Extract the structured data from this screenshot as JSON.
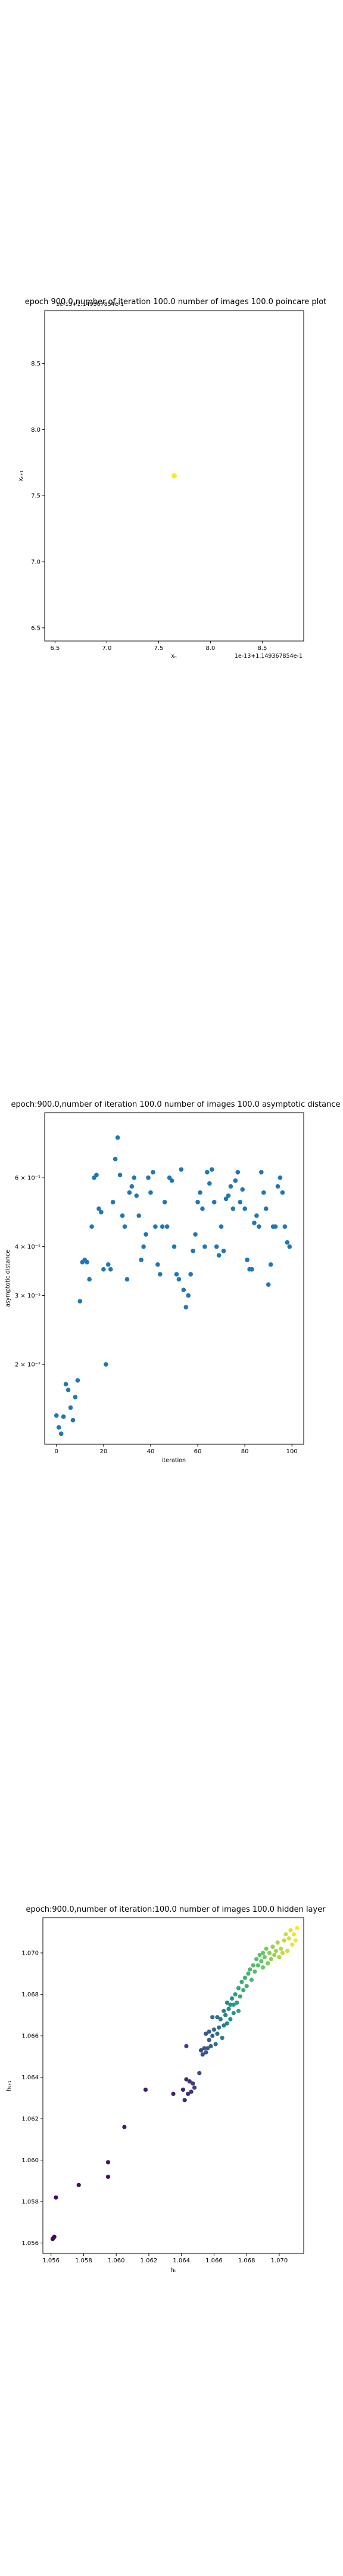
{
  "chart_data": [
    {
      "type": "scatter",
      "title": "epoch 900.0,number of iteration 100.0 number of images 100.0 poincare plot",
      "overlay_text": "1e-13+1.149367854e-1",
      "xlabel": "xₙ",
      "ylabel": "xₙ₊₁",
      "x_ticks": [
        "6.5",
        "7.0",
        "7.5",
        "8.0",
        "8.5"
      ],
      "y_ticks": [
        "6.5",
        "7.0",
        "7.5",
        "8.0",
        "8.5"
      ],
      "offset_label": "1e-13+1.149367854e-1",
      "xlim": [
        6.4,
        8.9
      ],
      "ylim": [
        6.4,
        8.9
      ],
      "grid": false,
      "points": [
        {
          "x": 7.65,
          "y": 7.65
        }
      ],
      "color": "#fde725"
    },
    {
      "type": "scatter",
      "title": "epoch:900.0,number of iteration 100.0  number of images 100.0 asymptotic distance",
      "xlabel": "iteration",
      "ylabel": "asymptotic distance",
      "x_ticks": [
        "0",
        "20",
        "40",
        "60",
        "80",
        "100"
      ],
      "y_ticks": [
        "2 × 10⁻¹",
        "3 × 10⁻¹",
        "4 × 10⁻¹",
        "6 × 10⁻¹"
      ],
      "y_tick_values": [
        0.2,
        0.3,
        0.4,
        0.6
      ],
      "y_scale": "log",
      "xlim": [
        -5,
        105
      ],
      "ylim": [
        0.125,
        0.88
      ],
      "grid": false,
      "color": "#1f77b4",
      "x": [
        0,
        1,
        2,
        3,
        4,
        5,
        6,
        7,
        8,
        9,
        10,
        11,
        12,
        13,
        14,
        15,
        16,
        17,
        18,
        19,
        20,
        21,
        22,
        23,
        24,
        25,
        26,
        27,
        28,
        29,
        30,
        31,
        32,
        33,
        34,
        35,
        36,
        37,
        38,
        39,
        40,
        41,
        42,
        43,
        44,
        45,
        46,
        47,
        48,
        49,
        50,
        51,
        52,
        53,
        54,
        55,
        56,
        57,
        58,
        59,
        60,
        61,
        62,
        63,
        64,
        65,
        66,
        67,
        68,
        69,
        70,
        71,
        72,
        73,
        74,
        75,
        76,
        77,
        78,
        79,
        80,
        81,
        82,
        83,
        84,
        85,
        86,
        87,
        88,
        89,
        90,
        91,
        92,
        93,
        94,
        95,
        96,
        97,
        98,
        99
      ],
      "values": [
        0.148,
        0.138,
        0.133,
        0.147,
        0.178,
        0.172,
        0.155,
        0.144,
        0.165,
        0.182,
        0.29,
        0.365,
        0.37,
        0.365,
        0.33,
        0.45,
        0.6,
        0.61,
        0.5,
        0.49,
        0.35,
        0.2,
        0.36,
        0.35,
        0.52,
        0.67,
        0.76,
        0.61,
        0.48,
        0.45,
        0.33,
        0.55,
        0.57,
        0.6,
        0.54,
        0.48,
        0.37,
        0.4,
        0.43,
        0.6,
        0.55,
        0.62,
        0.45,
        0.36,
        0.34,
        0.45,
        0.52,
        0.45,
        0.6,
        0.59,
        0.4,
        0.34,
        0.33,
        0.63,
        0.31,
        0.28,
        0.3,
        0.34,
        0.39,
        0.43,
        0.52,
        0.55,
        0.5,
        0.4,
        0.62,
        0.58,
        0.63,
        0.52,
        0.4,
        0.38,
        0.45,
        0.39,
        0.53,
        0.54,
        0.57,
        0.5,
        0.59,
        0.62,
        0.52,
        0.56,
        0.5,
        0.37,
        0.35,
        0.35,
        0.46,
        0.48,
        0.45,
        0.62,
        0.55,
        0.5,
        0.32,
        0.36,
        0.45,
        0.45,
        0.57,
        0.6,
        0.55,
        0.45,
        0.41,
        0.4
      ]
    },
    {
      "type": "scatter",
      "title": "epoch:900.0,number of iteration:100.0  number of images 100.0 hidden layer",
      "xlabel": "hₜ",
      "ylabel": "hₜ₊₁",
      "x_ticks": [
        "1.056",
        "1.058",
        "1.060",
        "1.062",
        "1.064",
        "1.066",
        "1.068",
        "1.070"
      ],
      "y_ticks": [
        "1.056",
        "1.058",
        "1.060",
        "1.062",
        "1.064",
        "1.066",
        "1.068",
        "1.070"
      ],
      "xlim": [
        1.0555,
        1.0715
      ],
      "ylim": [
        1.0555,
        1.0717
      ],
      "grid": false,
      "colormap": "viridis",
      "points": [
        {
          "x": 1.0561,
          "y": 1.0562
        },
        {
          "x": 1.0562,
          "y": 1.0563
        },
        {
          "x": 1.05615,
          "y": 1.05625
        },
        {
          "x": 1.0563,
          "y": 1.0582
        },
        {
          "x": 1.0577,
          "y": 1.0588
        },
        {
          "x": 1.0595,
          "y": 1.0592
        },
        {
          "x": 1.0595,
          "y": 1.0599
        },
        {
          "x": 1.0605,
          "y": 1.0616
        },
        {
          "x": 1.0618,
          "y": 1.0634
        },
        {
          "x": 1.0635,
          "y": 1.0632
        },
        {
          "x": 1.0641,
          "y": 1.0634
        },
        {
          "x": 1.0642,
          "y": 1.0629
        },
        {
          "x": 1.0643,
          "y": 1.0639
        },
        {
          "x": 1.0644,
          "y": 1.0632
        },
        {
          "x": 1.0645,
          "y": 1.0638
        },
        {
          "x": 1.0646,
          "y": 1.0633
        },
        {
          "x": 1.0647,
          "y": 1.0637
        },
        {
          "x": 1.0648,
          "y": 1.0635
        },
        {
          "x": 1.0643,
          "y": 1.0655
        },
        {
          "x": 1.0651,
          "y": 1.0642
        },
        {
          "x": 1.0652,
          "y": 1.0653
        },
        {
          "x": 1.0653,
          "y": 1.0651
        },
        {
          "x": 1.0654,
          "y": 1.0654
        },
        {
          "x": 1.0655,
          "y": 1.0652
        },
        {
          "x": 1.0655,
          "y": 1.0661
        },
        {
          "x": 1.0656,
          "y": 1.0654
        },
        {
          "x": 1.0657,
          "y": 1.0658
        },
        {
          "x": 1.0657,
          "y": 1.0662
        },
        {
          "x": 1.0658,
          "y": 1.0655
        },
        {
          "x": 1.0659,
          "y": 1.066
        },
        {
          "x": 1.0659,
          "y": 1.0669
        },
        {
          "x": 1.066,
          "y": 1.0663
        },
        {
          "x": 1.0661,
          "y": 1.0656
        },
        {
          "x": 1.0662,
          "y": 1.0661
        },
        {
          "x": 1.0662,
          "y": 1.0669
        },
        {
          "x": 1.0663,
          "y": 1.0664
        },
        {
          "x": 1.0664,
          "y": 1.0668
        },
        {
          "x": 1.0665,
          "y": 1.0659
        },
        {
          "x": 1.0666,
          "y": 1.0665
        },
        {
          "x": 1.0666,
          "y": 1.0672
        },
        {
          "x": 1.0667,
          "y": 1.067
        },
        {
          "x": 1.0668,
          "y": 1.0676
        },
        {
          "x": 1.0668,
          "y": 1.0666
        },
        {
          "x": 1.0669,
          "y": 1.0673
        },
        {
          "x": 1.067,
          "y": 1.0668
        },
        {
          "x": 1.067,
          "y": 1.0675
        },
        {
          "x": 1.0671,
          "y": 1.0678
        },
        {
          "x": 1.0672,
          "y": 1.0671
        },
        {
          "x": 1.0672,
          "y": 1.0675
        },
        {
          "x": 1.0673,
          "y": 1.068
        },
        {
          "x": 1.0674,
          "y": 1.0676
        },
        {
          "x": 1.0675,
          "y": 1.0672
        },
        {
          "x": 1.0675,
          "y": 1.0683
        },
        {
          "x": 1.0676,
          "y": 1.0679
        },
        {
          "x": 1.0677,
          "y": 1.0686
        },
        {
          "x": 1.0678,
          "y": 1.0682
        },
        {
          "x": 1.0679,
          "y": 1.0688
        },
        {
          "x": 1.068,
          "y": 1.0684
        },
        {
          "x": 1.0681,
          "y": 1.069
        },
        {
          "x": 1.0682,
          "y": 1.0692
        },
        {
          "x": 1.0683,
          "y": 1.0687
        },
        {
          "x": 1.0684,
          "y": 1.0694
        },
        {
          "x": 1.0685,
          "y": 1.0691
        },
        {
          "x": 1.0686,
          "y": 1.0697
        },
        {
          "x": 1.0687,
          "y": 1.0694
        },
        {
          "x": 1.0688,
          "y": 1.0699
        },
        {
          "x": 1.0689,
          "y": 1.0696
        },
        {
          "x": 1.069,
          "y": 1.07
        },
        {
          "x": 1.069,
          "y": 1.0693
        },
        {
          "x": 1.0691,
          "y": 1.0698
        },
        {
          "x": 1.0692,
          "y": 1.0702
        },
        {
          "x": 1.0693,
          "y": 1.0695
        },
        {
          "x": 1.0694,
          "y": 1.07
        },
        {
          "x": 1.0695,
          "y": 1.0697
        },
        {
          "x": 1.0696,
          "y": 1.0703
        },
        {
          "x": 1.0697,
          "y": 1.0699
        },
        {
          "x": 1.0698,
          "y": 1.0701
        },
        {
          "x": 1.0699,
          "y": 1.0705
        },
        {
          "x": 1.07,
          "y": 1.0698
        },
        {
          "x": 1.0701,
          "y": 1.0702
        },
        {
          "x": 1.0702,
          "y": 1.07
        },
        {
          "x": 1.0703,
          "y": 1.0706
        },
        {
          "x": 1.0704,
          "y": 1.0709
        },
        {
          "x": 1.0705,
          "y": 1.0701
        },
        {
          "x": 1.0706,
          "y": 1.0707
        },
        {
          "x": 1.0707,
          "y": 1.0711
        },
        {
          "x": 1.0708,
          "y": 1.0704
        },
        {
          "x": 1.0709,
          "y": 1.0709
        },
        {
          "x": 1.071,
          "y": 1.0706
        },
        {
          "x": 1.0711,
          "y": 1.0712
        }
      ]
    }
  ]
}
